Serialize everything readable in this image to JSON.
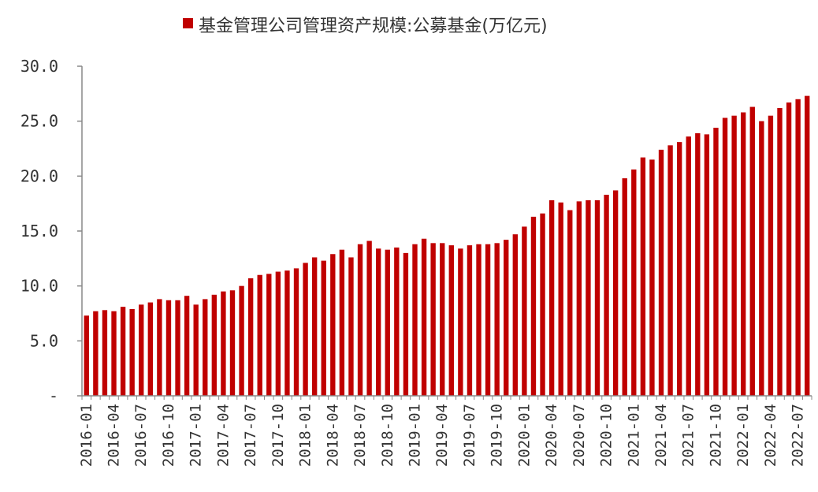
{
  "chart_data": {
    "type": "bar",
    "legend": {
      "label": "基金管理公司管理资产规模:公募基金(万亿元)",
      "position": "top"
    },
    "colors": {
      "bar": "#C00000",
      "axis": "#888888"
    },
    "ylim": [
      0,
      30
    ],
    "yticks": [
      {
        "value": 0,
        "label": "-"
      },
      {
        "value": 5,
        "label": "5.0"
      },
      {
        "value": 10,
        "label": "10.0"
      },
      {
        "value": 15,
        "label": "15.0"
      },
      {
        "value": 20,
        "label": "20.0"
      },
      {
        "value": 25,
        "label": "25.0"
      },
      {
        "value": 30,
        "label": "30.0"
      }
    ],
    "grid": false,
    "x_tick_labels": [
      "2016-01",
      "2016-04",
      "2016-07",
      "2016-10",
      "2017-01",
      "2017-04",
      "2017-07",
      "2017-10",
      "2018-01",
      "2018-04",
      "2018-07",
      "2018-10",
      "2019-01",
      "2019-04",
      "2019-07",
      "2019-10",
      "2020-01",
      "2020-04",
      "2020-07",
      "2020-10",
      "2021-01",
      "2021-04",
      "2021-07",
      "2021-10",
      "2022-01",
      "2022-04",
      "2022-07"
    ],
    "categories": [
      "2016-01",
      "2016-02",
      "2016-03",
      "2016-04",
      "2016-05",
      "2016-06",
      "2016-07",
      "2016-08",
      "2016-09",
      "2016-10",
      "2016-11",
      "2016-12",
      "2017-01",
      "2017-02",
      "2017-03",
      "2017-04",
      "2017-05",
      "2017-06",
      "2017-07",
      "2017-08",
      "2017-09",
      "2017-10",
      "2017-11",
      "2017-12",
      "2018-01",
      "2018-02",
      "2018-03",
      "2018-04",
      "2018-05",
      "2018-06",
      "2018-07",
      "2018-08",
      "2018-09",
      "2018-10",
      "2018-11",
      "2018-12",
      "2019-01",
      "2019-02",
      "2019-03",
      "2019-04",
      "2019-05",
      "2019-06",
      "2019-07",
      "2019-08",
      "2019-09",
      "2019-10",
      "2019-11",
      "2019-12",
      "2020-01",
      "2020-02",
      "2020-03",
      "2020-04",
      "2020-05",
      "2020-06",
      "2020-07",
      "2020-08",
      "2020-09",
      "2020-10",
      "2020-11",
      "2020-12",
      "2021-01",
      "2021-02",
      "2021-03",
      "2021-04",
      "2021-05",
      "2021-06",
      "2021-07",
      "2021-08",
      "2021-09",
      "2021-10",
      "2021-11",
      "2021-12",
      "2022-01",
      "2022-02",
      "2022-03",
      "2022-04",
      "2022-05",
      "2022-06",
      "2022-07",
      "2022-08"
    ],
    "values": [
      7.3,
      7.7,
      7.8,
      7.7,
      8.1,
      7.9,
      8.3,
      8.5,
      8.8,
      8.7,
      8.7,
      9.1,
      8.3,
      8.8,
      9.2,
      9.5,
      9.6,
      10.0,
      10.7,
      11.0,
      11.1,
      11.3,
      11.4,
      11.6,
      12.1,
      12.6,
      12.3,
      12.9,
      13.3,
      12.6,
      13.8,
      14.1,
      13.4,
      13.3,
      13.5,
      13.0,
      13.8,
      14.3,
      13.9,
      13.9,
      13.7,
      13.4,
      13.7,
      13.8,
      13.8,
      13.9,
      14.2,
      14.7,
      15.4,
      16.3,
      16.6,
      17.8,
      17.6,
      16.9,
      17.7,
      17.8,
      17.8,
      18.3,
      18.7,
      19.8,
      20.6,
      21.7,
      21.5,
      22.4,
      22.8,
      23.1,
      23.6,
      23.9,
      23.8,
      24.4,
      25.3,
      25.5,
      25.8,
      26.3,
      25.0,
      25.5,
      26.2,
      26.7,
      27.0,
      27.3
    ]
  }
}
